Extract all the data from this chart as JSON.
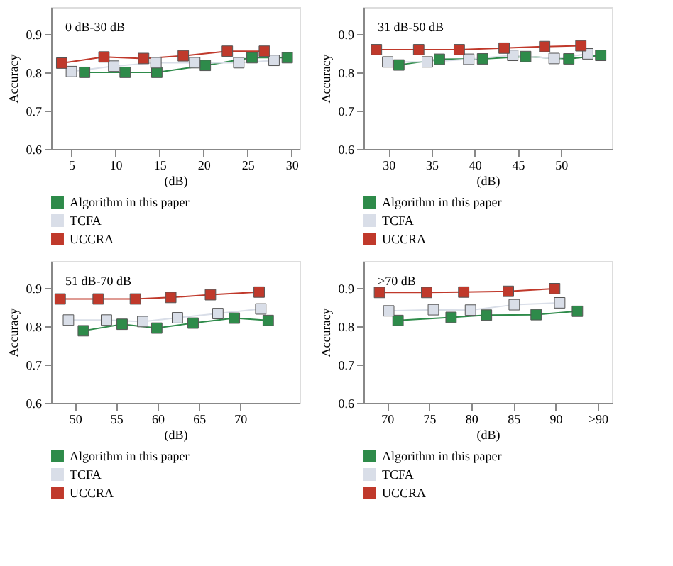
{
  "chart_data": [
    {
      "type": "line",
      "title": "0 dB-30 dB",
      "xlabel": "(dB)",
      "ylabel": "Accuracy",
      "xlim": [
        2.7,
        30.9
      ],
      "xticks": [
        5,
        10,
        15,
        20,
        25,
        30
      ],
      "ylim": [
        0.6,
        0.97
      ],
      "yticks": [
        0.6,
        0.7,
        0.8,
        0.9
      ],
      "grid": false,
      "legend": "bottom",
      "marker": "square",
      "line_style": "solid",
      "series": [
        {
          "name": "Algorithm in this paper",
          "color": "#2e8b4a",
          "x": [
            6.5,
            11.1,
            14.7,
            20.2,
            25.5,
            29.5
          ],
          "values": [
            0.8,
            0.8,
            0.8,
            0.818,
            0.838,
            0.838
          ]
        },
        {
          "name": "TCFA",
          "color": "#d9dee8",
          "x": [
            5,
            9.8,
            14.6,
            19,
            24,
            28
          ],
          "values": [
            0.802,
            0.816,
            0.825,
            0.825,
            0.825,
            0.831
          ]
        },
        {
          "name": "UCCRA",
          "color": "#c0392b",
          "x": [
            3.9,
            8.7,
            13.2,
            17.7,
            22.7,
            26.9
          ],
          "values": [
            0.824,
            0.84,
            0.836,
            0.843,
            0.855,
            0.855
          ]
        }
      ]
    },
    {
      "type": "line",
      "title": "31 dB-50 dB",
      "xlabel": "(dB)",
      "ylabel": "Accuracy",
      "xlim": [
        27.1,
        55.9
      ],
      "xticks": [
        30,
        35,
        40,
        45,
        50
      ],
      "ylim": [
        0.6,
        0.97
      ],
      "yticks": [
        0.6,
        0.7,
        0.8,
        0.9
      ],
      "grid": false,
      "legend": "bottom",
      "marker": "square",
      "line_style": "solid",
      "series": [
        {
          "name": "Algorithm in this paper",
          "color": "#2e8b4a",
          "x": [
            31.2,
            35.9,
            40.9,
            45.9,
            50.9,
            54.6
          ],
          "values": [
            0.819,
            0.834,
            0.835,
            0.841,
            0.835,
            0.844
          ]
        },
        {
          "name": "TCFA",
          "color": "#d9dee8",
          "x": [
            29.9,
            34.5,
            39.3,
            44.4,
            49.2,
            53.1
          ],
          "values": [
            0.827,
            0.827,
            0.834,
            0.844,
            0.836,
            0.848
          ]
        },
        {
          "name": "UCCRA",
          "color": "#c0392b",
          "x": [
            28.6,
            33.5,
            38.2,
            43.4,
            48.1,
            52.3
          ],
          "values": [
            0.859,
            0.859,
            0.859,
            0.863,
            0.867,
            0.869
          ]
        }
      ]
    },
    {
      "type": "line",
      "title": "51 dB-70 dB",
      "xlabel": "(dB)",
      "ylabel": "Accuracy",
      "xlim": [
        47.1,
        77.2
      ],
      "xticks": [
        50,
        55,
        60,
        65,
        70
      ],
      "ylim": [
        0.6,
        0.97
      ],
      "yticks": [
        0.6,
        0.7,
        0.8,
        0.9
      ],
      "grid": false,
      "legend": "bottom",
      "marker": "square",
      "line_style": "solid",
      "series": [
        {
          "name": "Algorithm in this paper",
          "color": "#2e8b4a",
          "x": [
            51,
            55.7,
            59.9,
            64.3,
            69.3,
            73.4
          ],
          "values": [
            0.788,
            0.805,
            0.795,
            0.808,
            0.821,
            0.815
          ]
        },
        {
          "name": "TCFA",
          "color": "#d9dee8",
          "x": [
            49.2,
            53.8,
            58.2,
            62.4,
            67.3,
            72.5
          ],
          "values": [
            0.816,
            0.816,
            0.812,
            0.822,
            0.833,
            0.845
          ]
        },
        {
          "name": "UCCRA",
          "color": "#c0392b",
          "x": [
            48.2,
            52.8,
            57.3,
            61.6,
            66.4,
            72.3
          ],
          "values": [
            0.871,
            0.871,
            0.871,
            0.875,
            0.882,
            0.889
          ]
        }
      ]
    },
    {
      "type": "line",
      "title": ">70 dB",
      "xlabel": "(dB)",
      "ylabel": "Accuracy",
      "xlim": [
        67.2,
        96.7
      ],
      "xticks": [
        70,
        75,
        80,
        85,
        90,
        {
          "value": 95,
          "label": ">90"
        }
      ],
      "ylim": [
        0.6,
        0.97
      ],
      "yticks": [
        0.6,
        0.7,
        0.8,
        0.9
      ],
      "grid": false,
      "legend": "bottom",
      "marker": "square",
      "line_style": "solid",
      "series": [
        {
          "name": "Algorithm in this paper",
          "color": "#2e8b4a",
          "x": [
            71.3,
            77.6,
            81.8,
            87.7,
            92.6
          ],
          "values": [
            0.815,
            0.823,
            0.829,
            0.83,
            0.839
          ]
        },
        {
          "name": "TCFA",
          "color": "#d9dee8",
          "x": [
            70.2,
            75.5,
            79.9,
            85.1,
            90.5
          ],
          "values": [
            0.84,
            0.843,
            0.842,
            0.856,
            0.861
          ]
        },
        {
          "name": "UCCRA",
          "color": "#c0392b",
          "x": [
            69.1,
            74.7,
            79.1,
            84.4,
            89.9
          ],
          "values": [
            0.888,
            0.888,
            0.889,
            0.891,
            0.898
          ]
        }
      ]
    }
  ]
}
